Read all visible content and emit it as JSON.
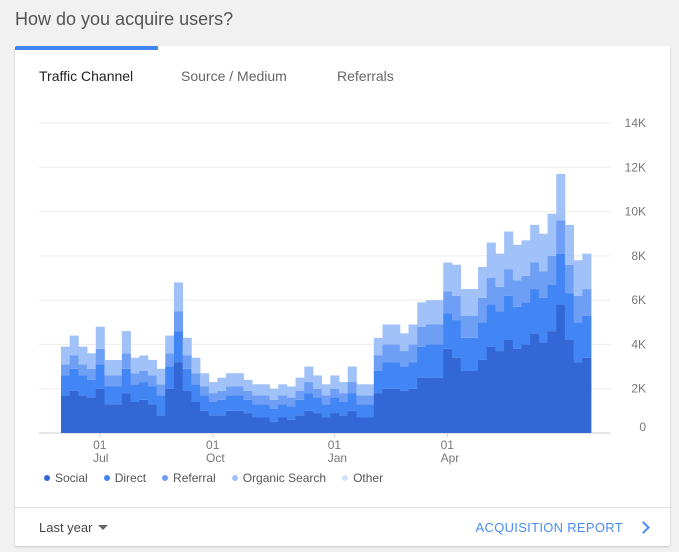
{
  "page": {
    "title": "How do you acquire users?"
  },
  "tabs": [
    {
      "label": "Traffic Channel",
      "active": true
    },
    {
      "label": "Source / Medium",
      "active": false
    },
    {
      "label": "Referrals",
      "active": false
    }
  ],
  "footer": {
    "range_label": "Last year",
    "report_label": "ACQUISITION REPORT"
  },
  "colors": {
    "accent": "#4285f4",
    "link": "#4a8cf0"
  },
  "chart_data": {
    "type": "area",
    "stacked": true,
    "x_ticks": [
      {
        "day": "01",
        "month": "Jul",
        "index": 4
      },
      {
        "day": "01",
        "month": "Oct",
        "index": 17
      },
      {
        "day": "01",
        "month": "Jan",
        "index": 31
      },
      {
        "day": "01",
        "month": "Apr",
        "index": 44
      }
    ],
    "y_ticks": [
      "0",
      "2K",
      "4K",
      "6K",
      "8K",
      "10K",
      "12K",
      "14K"
    ],
    "ylim": [
      0,
      14000
    ],
    "grid": true,
    "legend_position": "bottom-left",
    "series": [
      {
        "name": "Social",
        "color": "#3367d6",
        "values": [
          1700,
          1900,
          1700,
          1600,
          2000,
          1300,
          1300,
          1800,
          1400,
          1500,
          1300,
          800,
          2000,
          3200,
          1900,
          1400,
          1000,
          800,
          800,
          1000,
          1000,
          900,
          700,
          700,
          500,
          700,
          600,
          800,
          1000,
          900,
          700,
          900,
          800,
          1000,
          700,
          700,
          1800,
          2000,
          2000,
          1900,
          2000,
          2500,
          2500,
          2500,
          3800,
          3400,
          2800,
          2800,
          3300,
          3900,
          3700,
          4200,
          3800,
          4000,
          4500,
          4100,
          4600,
          5800,
          4200,
          3200,
          3400
        ]
      },
      {
        "name": "Direct",
        "color": "#4285f4",
        "values": [
          900,
          1000,
          900,
          800,
          1100,
          800,
          800,
          1100,
          800,
          800,
          800,
          900,
          1000,
          1400,
          1000,
          800,
          700,
          600,
          700,
          700,
          700,
          600,
          600,
          600,
          600,
          600,
          600,
          700,
          800,
          700,
          600,
          700,
          600,
          800,
          600,
          600,
          1000,
          1200,
          1200,
          1100,
          1200,
          1400,
          1500,
          1500,
          1600,
          1700,
          1500,
          1500,
          1700,
          1900,
          1800,
          2000,
          1900,
          1900,
          2000,
          2000,
          2100,
          2300,
          2100,
          1800,
          1900
        ]
      },
      {
        "name": "Referral",
        "color": "#6f9ef5",
        "values": [
          500,
          600,
          500,
          500,
          700,
          500,
          500,
          700,
          500,
          500,
          500,
          500,
          600,
          900,
          600,
          500,
          400,
          400,
          400,
          400,
          400,
          400,
          400,
          400,
          400,
          400,
          400,
          400,
          500,
          400,
          400,
          400,
          400,
          500,
          400,
          400,
          700,
          800,
          800,
          700,
          800,
          900,
          900,
          900,
          1000,
          1100,
          1000,
          1000,
          1100,
          1200,
          1100,
          1200,
          1200,
          1200,
          1200,
          1200,
          1300,
          1500,
          1300,
          1200,
          1200
        ]
      },
      {
        "name": "Organic Search",
        "color": "#a1c2f8",
        "values": [
          800,
          900,
          800,
          700,
          1000,
          700,
          700,
          1000,
          700,
          700,
          700,
          700,
          800,
          1300,
          800,
          700,
          600,
          500,
          600,
          600,
          600,
          500,
          500,
          500,
          500,
          500,
          500,
          600,
          700,
          600,
          500,
          600,
          500,
          700,
          500,
          500,
          800,
          900,
          900,
          800,
          900,
          1100,
          1100,
          1100,
          1300,
          1400,
          1200,
          1200,
          1400,
          1600,
          1500,
          1700,
          1600,
          1600,
          1700,
          1700,
          1900,
          2100,
          1800,
          1600,
          1600
        ]
      },
      {
        "name": "Other",
        "color": "#d3e2fb",
        "values": [
          0,
          0,
          0,
          0,
          0,
          0,
          0,
          0,
          0,
          0,
          0,
          0,
          0,
          0,
          0,
          0,
          0,
          0,
          0,
          0,
          0,
          0,
          0,
          0,
          0,
          0,
          0,
          0,
          0,
          0,
          0,
          0,
          0,
          0,
          0,
          0,
          0,
          0,
          0,
          0,
          0,
          0,
          0,
          0,
          0,
          0,
          0,
          0,
          0,
          0,
          0,
          0,
          0,
          0,
          0,
          0,
          0,
          0,
          0,
          0,
          0
        ]
      }
    ]
  }
}
